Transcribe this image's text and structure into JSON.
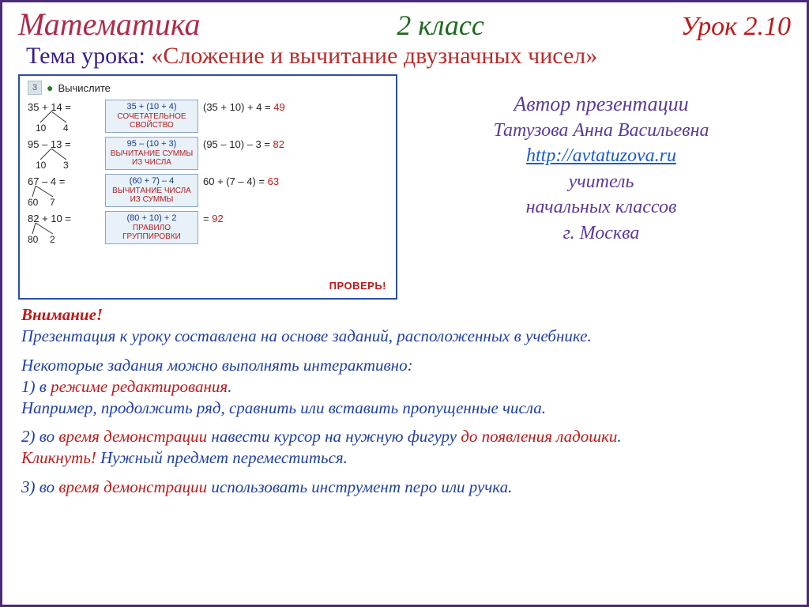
{
  "colors": {
    "frame_border": "#4a2a7a",
    "subject": "#b02a4a",
    "grade": "#1e6a1e",
    "lesson": "#c01818",
    "topic_label": "#3a1e8a",
    "topic_text": "#bb2b2b",
    "figure_border": "#2a4ea8",
    "rule_box_bg": "#e8f0f8",
    "rule_box_border": "#8aa6c4",
    "rule_top_text": "#1a3a8a",
    "rule_bot_text": "#b02020",
    "answer": "#c01818",
    "author_text": "#5a3a9a",
    "link": "#1a5bd6",
    "note_blue": "#1e3fa8",
    "note_red": "#c01818"
  },
  "header": {
    "subject": "Математика",
    "grade": "2 класс",
    "lesson": "Урок 2.10"
  },
  "topic": {
    "label": "Тема урока: ",
    "text": "«Сложение и вычитание двузначных чисел»"
  },
  "figure": {
    "task_num": "3",
    "task_label": "Вычислите",
    "rows": [
      {
        "lhs": "35  +  14  =",
        "split_a": "10",
        "split_b": "4",
        "box_top": "35 + (10 + 4)",
        "box_bot": "СОЧЕТАТЕЛЬНОЕ СВОЙСТВО",
        "after": "(35 + 10)  + 4  =",
        "ans": "49",
        "apex": 30,
        "al": 10,
        "ar": 45
      },
      {
        "lhs": "95  –  13  =",
        "split_a": "10",
        "split_b": "3",
        "box_top": "95 – (10 + 3)",
        "box_bot": "ВЫЧИТАНИЕ СУММЫ ИЗ ЧИСЛА",
        "after": "(95 – 10) –  3  =",
        "ans": "82",
        "apex": 30,
        "al": 10,
        "ar": 45
      },
      {
        "lhs": "67  –   4  =",
        "split_a": "60",
        "split_b": "7",
        "box_top": "(60 + 7)  –  4",
        "box_bot": "ВЫЧИТАНИЕ ЧИСЛА ИЗ СУММЫ",
        "after": "60 +  (7  – 4)  =",
        "ans": "63",
        "apex": 10,
        "al": 0,
        "ar": 28
      },
      {
        "lhs": "82 + 10  =",
        "split_a": "80",
        "split_b": "2",
        "box_top": "(80 + 10)  + 2",
        "box_bot": "ПРАВИЛО ГРУППИРОВКИ",
        "after": "=",
        "ans": "92",
        "apex": 10,
        "al": 0,
        "ar": 28
      }
    ],
    "check": "ПРОВЕРЬ!"
  },
  "author": {
    "title": "Автор презентации",
    "name": "Татузова Анна Васильевна",
    "link": "http://avtatuzova.ru",
    "role1": "учитель",
    "role2": "начальных классов",
    "city": "г. Москва"
  },
  "notes": {
    "attention": "Внимание!",
    "p1": "Презентация к уроку составлена на основе заданий, расположенных в учебнике.",
    "p2a": "Некоторые задания можно выполнять интерактивно:",
    "p2b_pre": "1) в ",
    "p2b_red": "режиме редактирования",
    "p2b_post": ".",
    "p2c": "Например, продолжить ряд, сравнить или вставить пропущенные числа.",
    "p3_pre": "2) во ",
    "p3_red1": "время демонстрации",
    "p3_mid": " навести курсор на  нужную фигуру ",
    "p3_red2": "до появления ладошки",
    "p3_post": ".",
    "p3b_red": "Кликнуть!",
    "p3b_rest": " Нужный предмет переместиться.",
    "p4_pre": "3) во ",
    "p4_red": "время демонстрации",
    "p4_post": " использовать инструмент перо или ручка."
  }
}
